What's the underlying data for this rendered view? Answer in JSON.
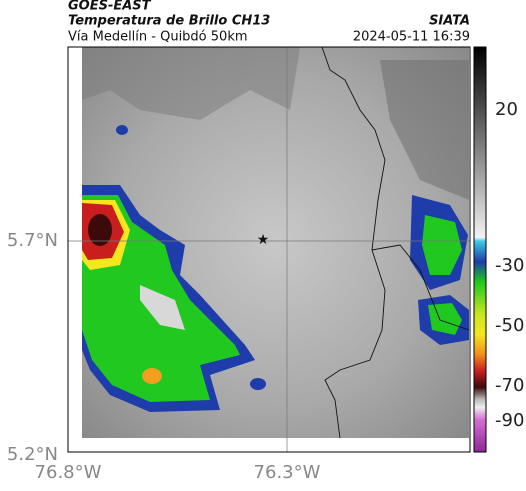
{
  "header": {
    "satellite": "GOES-EAST",
    "product": "Temperatura de Brillo CH13",
    "route": "Vía Medellín - Quibdó 50km",
    "source": "SIATA",
    "datetime": "2024-05-11 16:39"
  },
  "map": {
    "lat_labels": [
      "5.7°N",
      "5.2°N"
    ],
    "lon_labels": [
      "76.8°W",
      "76.3°W"
    ]
  },
  "colorbar": {
    "ticks": [
      20,
      -30,
      -50,
      -70,
      -90
    ]
  }
}
